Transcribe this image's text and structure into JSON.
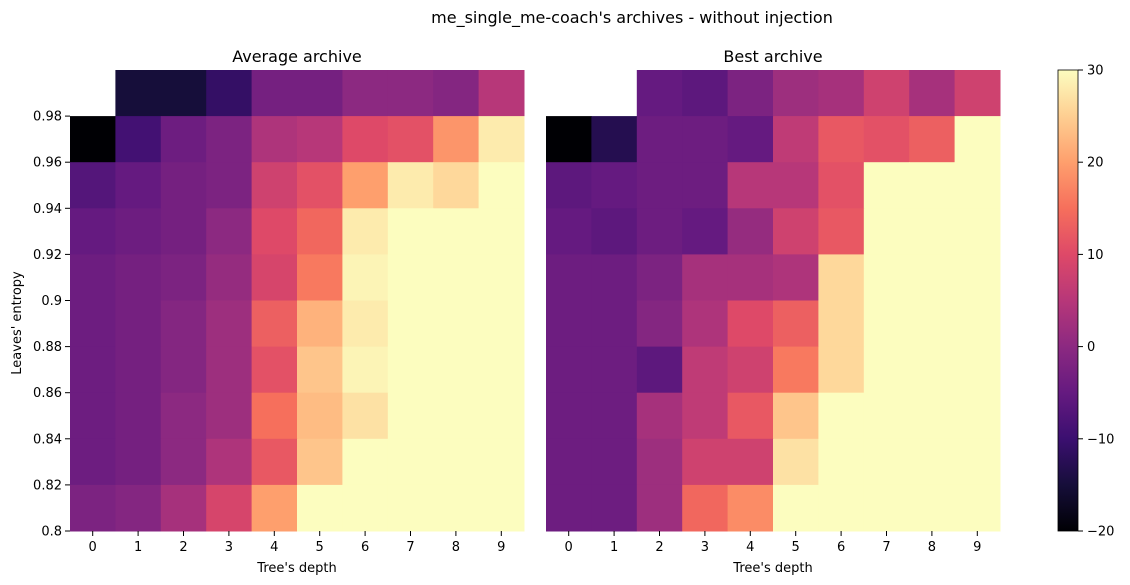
{
  "figure": {
    "suptitle": "me_single_me-coach's archives - without injection"
  },
  "colorbar": {
    "colormap": "magma",
    "vmin": -20,
    "vmax": 30,
    "ticks": [
      "30",
      "20",
      "10",
      "0",
      "−10",
      "−20"
    ]
  },
  "chart_data": [
    {
      "type": "heatmap",
      "title": "Average archive",
      "xlabel": "Tree's depth",
      "ylabel": "Leaves' entropy",
      "x_ticks": [
        "0",
        "1",
        "2",
        "3",
        "4",
        "5",
        "6",
        "7",
        "8",
        "9"
      ],
      "y_ticks": [
        "0.98",
        "0.96",
        "0.94",
        "0.92",
        "0.9",
        "0.88",
        "0.86",
        "0.84",
        "0.82",
        "0.8"
      ],
      "rows_top_to_bottom": [
        [
          null,
          -15,
          -15,
          -11,
          -3,
          -3,
          0,
          0,
          -1,
          5
        ],
        [
          -20,
          -9,
          -4,
          -2,
          4,
          5,
          10,
          11,
          19,
          28
        ],
        [
          -7,
          -5,
          -3,
          -2,
          8,
          11,
          20,
          28,
          26,
          30
        ],
        [
          -5,
          -4,
          -3,
          0,
          10,
          14,
          28,
          30,
          30,
          30
        ],
        [
          -4,
          -3,
          -2,
          1,
          9,
          16,
          29,
          30,
          30,
          30
        ],
        [
          -4,
          -3,
          -1,
          2,
          13,
          22,
          28,
          30,
          30,
          30
        ],
        [
          -4,
          -3,
          -1,
          2,
          11,
          24,
          29,
          30,
          30,
          30
        ],
        [
          -4,
          -3,
          0,
          2,
          15,
          23,
          27,
          30,
          30,
          30
        ],
        [
          -4,
          -3,
          0,
          4,
          12,
          24,
          30,
          30,
          30,
          30
        ],
        [
          -2,
          -1,
          3,
          9,
          20,
          30,
          30,
          30,
          30,
          30
        ]
      ]
    },
    {
      "type": "heatmap",
      "title": "Best archive",
      "xlabel": "Tree's depth",
      "ylabel": "",
      "x_ticks": [
        "0",
        "1",
        "2",
        "3",
        "4",
        "5",
        "6",
        "7",
        "8",
        "9"
      ],
      "y_ticks": [],
      "rows_top_to_bottom": [
        [
          null,
          null,
          -5,
          -6,
          -2,
          2,
          3,
          8,
          3,
          8
        ],
        [
          -20,
          -13,
          -4,
          -4,
          -5,
          6,
          12,
          11,
          13,
          30
        ],
        [
          -6,
          -5,
          -4,
          -4,
          5,
          5,
          11,
          30,
          30,
          30
        ],
        [
          -5,
          -6,
          -4,
          -5,
          1,
          8,
          12,
          30,
          30,
          30
        ],
        [
          -4,
          -4,
          -2,
          3,
          3,
          4,
          26,
          30,
          30,
          30
        ],
        [
          -4,
          -4,
          -1,
          4,
          10,
          13,
          26,
          30,
          30,
          30
        ],
        [
          -4,
          -4,
          -6,
          6,
          8,
          16,
          26,
          30,
          30,
          30
        ],
        [
          -4,
          -4,
          3,
          6,
          12,
          24,
          30,
          30,
          30,
          30
        ],
        [
          -4,
          -4,
          2,
          8,
          8,
          27,
          30,
          30,
          30,
          30
        ],
        [
          -4,
          -4,
          2,
          14,
          18,
          30,
          30,
          30,
          30,
          30
        ]
      ]
    }
  ]
}
